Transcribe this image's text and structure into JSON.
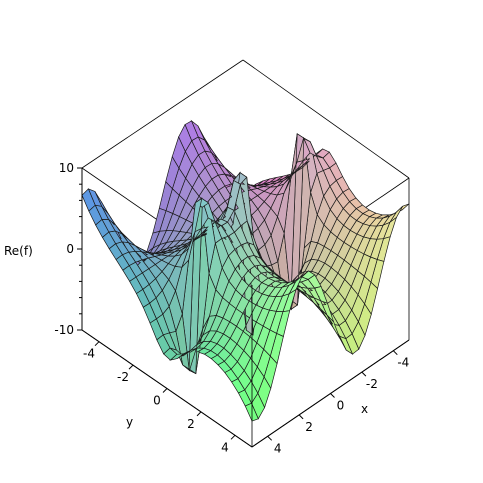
{
  "chart_data": {
    "type": "surface3d",
    "surface": "Re(f), with f = 1/sin(x + i*y), sampled on a mesh",
    "x": {
      "label": "x",
      "range": [
        -5,
        5
      ],
      "ticks": [
        "-4",
        "-2",
        "0",
        "2",
        "4"
      ]
    },
    "y": {
      "label": "y",
      "range": [
        -5,
        5
      ],
      "ticks": [
        "-4",
        "-2",
        "0",
        "2",
        "4"
      ]
    },
    "z": {
      "label": "Re(f)",
      "range": [
        -10,
        10
      ],
      "ticks": [
        "10",
        "0",
        "-10"
      ]
    },
    "mesh": {
      "x_lines": 25,
      "y_lines": 25
    },
    "grid": false,
    "legend": "none",
    "shading": "xyz (Maple default)"
  }
}
